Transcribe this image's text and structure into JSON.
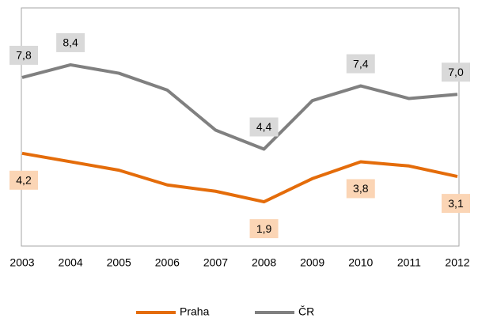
{
  "chart_data": {
    "type": "line",
    "categories": [
      "2003",
      "2004",
      "2005",
      "2006",
      "2007",
      "2008",
      "2009",
      "2010",
      "2011",
      "2012"
    ],
    "series": [
      {
        "name": "Praha",
        "color": "#e46c0a",
        "label_bg": "#fbd5b5",
        "values": [
          4.2,
          3.8,
          3.4,
          2.7,
          2.4,
          1.9,
          3.0,
          3.8,
          3.6,
          3.1
        ],
        "value_labels": [
          "4,2",
          null,
          null,
          null,
          null,
          "1,9",
          null,
          "3,8",
          null,
          "3,1"
        ]
      },
      {
        "name": "ČR",
        "color": "#808080",
        "label_bg": "#d9d9d9",
        "values": [
          7.8,
          8.4,
          8.0,
          7.2,
          5.3,
          4.4,
          6.7,
          7.4,
          6.8,
          7.0
        ],
        "value_labels": [
          "7,8",
          "8,4",
          null,
          null,
          null,
          "4,4",
          null,
          "7,4",
          null,
          "7,0"
        ]
      }
    ],
    "ylim": [
      -0.2,
      11.1
    ]
  }
}
